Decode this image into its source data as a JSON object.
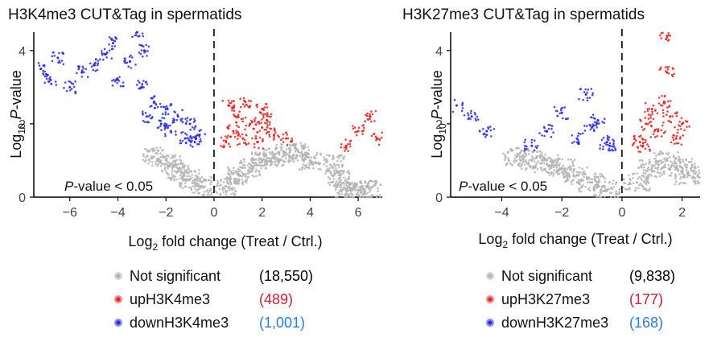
{
  "chart_data": [
    {
      "type": "scatter",
      "title": "H3K4me3 CUT&Tag in spermatids",
      "xlabel": "Log2 fold change (Treat / Ctrl.)",
      "ylabel": "Log10 P-value",
      "xlim": [
        -7.5,
        7
      ],
      "ylim": [
        0,
        4.5
      ],
      "xticks": [
        -6,
        -4,
        -2,
        0,
        2,
        4,
        6
      ],
      "yticks": [
        0,
        2,
        4
      ],
      "annotation": "P-value < 0.05",
      "significance_threshold_log10p": 1.3,
      "vertical_reference_line_x": 0,
      "legend_placement": "below",
      "series": [
        {
          "name": "Not significant",
          "count": "(18,550)",
          "color": "#b3b3b3",
          "count_color": "#000000",
          "points": [
            [
              -2.5,
              1.1
            ],
            [
              -1.8,
              0.9
            ],
            [
              -1.5,
              0.7
            ],
            [
              -1.0,
              0.5
            ],
            [
              -0.5,
              0.3
            ],
            [
              0.5,
              0.3
            ],
            [
              1.0,
              0.6
            ],
            [
              1.5,
              0.8
            ],
            [
              2.0,
              1.0
            ],
            [
              2.5,
              1.1
            ],
            [
              3.0,
              1.2
            ],
            [
              3.5,
              1.25
            ],
            [
              4.0,
              1.0
            ],
            [
              5.0,
              0.9
            ],
            [
              5.2,
              0.5
            ],
            [
              5.5,
              0.2
            ],
            [
              6.0,
              0.2
            ],
            [
              6.5,
              0.2
            ]
          ]
        },
        {
          "name": "upH3K4me3",
          "count": "(489)",
          "color": "#e82222",
          "count_color": "#cc1f3c",
          "points": [
            [
              0.5,
              1.5
            ],
            [
              0.8,
              1.8
            ],
            [
              1.0,
              2.2
            ],
            [
              1.2,
              1.6
            ],
            [
              1.5,
              2.0
            ],
            [
              1.8,
              1.5
            ],
            [
              2.0,
              1.9
            ],
            [
              2.2,
              2.1
            ],
            [
              2.5,
              1.7
            ],
            [
              3.0,
              1.6
            ],
            [
              0.6,
              2.5
            ],
            [
              1.3,
              2.6
            ],
            [
              2.0,
              2.4
            ],
            [
              5.5,
              1.4
            ],
            [
              6.0,
              1.8
            ],
            [
              6.5,
              2.2
            ],
            [
              6.8,
              1.6
            ]
          ]
        },
        {
          "name": "downH3K4me3",
          "count": "(1,001)",
          "color": "#2a2ae6",
          "count_color": "#2e7bdc",
          "points": [
            [
              -7.2,
              3.5
            ],
            [
              -6.8,
              3.2
            ],
            [
              -6.5,
              3.8
            ],
            [
              -6.0,
              3.0
            ],
            [
              -5.5,
              3.4
            ],
            [
              -5.0,
              3.6
            ],
            [
              -4.5,
              3.9
            ],
            [
              -4.0,
              3.2
            ],
            [
              -3.5,
              3.7
            ],
            [
              -3.0,
              3.0
            ],
            [
              -2.8,
              2.2
            ],
            [
              -2.5,
              2.6
            ],
            [
              -2.2,
              2.0
            ],
            [
              -2.0,
              2.4
            ],
            [
              -1.8,
              1.8
            ],
            [
              -1.5,
              2.2
            ],
            [
              -1.2,
              1.6
            ],
            [
              -1.0,
              2.0
            ],
            [
              -0.8,
              1.5
            ],
            [
              -0.6,
              1.7
            ],
            [
              -4.2,
              4.2
            ],
            [
              -3.2,
              4.5
            ],
            [
              -2.9,
              4.0
            ]
          ]
        }
      ]
    },
    {
      "type": "scatter",
      "title": "H3K27me3 CUT&Tag in spermatids",
      "xlabel": "Log2 fold change (Treat / Ctrl.)",
      "ylabel": "Log10 P-value",
      "xlim": [
        -5.7,
        2.6
      ],
      "ylim": [
        0,
        4.5
      ],
      "xticks": [
        -4,
        -2,
        0,
        2
      ],
      "yticks": [
        0,
        2,
        4
      ],
      "annotation": "P-value < 0.05",
      "significance_threshold_log10p": 1.3,
      "vertical_reference_line_x": 0,
      "legend_placement": "below",
      "series": [
        {
          "name": "Not significant",
          "count": "(9,838)",
          "color": "#b3b3b3",
          "count_color": "#000000",
          "points": [
            [
              -3.5,
              1.1
            ],
            [
              -3.0,
              1.0
            ],
            [
              -2.5,
              0.9
            ],
            [
              -2.0,
              0.8
            ],
            [
              -1.5,
              0.6
            ],
            [
              -1.0,
              0.4
            ],
            [
              -0.5,
              0.2
            ],
            [
              0.5,
              0.4
            ],
            [
              1.0,
              0.8
            ],
            [
              1.5,
              1.0
            ],
            [
              2.0,
              0.8
            ],
            [
              2.2,
              0.6
            ]
          ]
        },
        {
          "name": "upH3K27me3",
          "count": "(177)",
          "color": "#e82222",
          "count_color": "#cc1f3c",
          "points": [
            [
              0.6,
              1.5
            ],
            [
              0.8,
              2.0
            ],
            [
              1.0,
              2.4
            ],
            [
              1.2,
              1.8
            ],
            [
              1.4,
              2.6
            ],
            [
              1.5,
              3.4
            ],
            [
              1.6,
              2.2
            ],
            [
              1.8,
              1.6
            ],
            [
              2.0,
              2.0
            ],
            [
              1.5,
              4.4
            ],
            [
              0.7,
              1.4
            ]
          ]
        },
        {
          "name": "downH3K27me3",
          "count": "(168)",
          "color": "#2a2ae6",
          "count_color": "#2e7bdc",
          "points": [
            [
              -5.5,
              2.5
            ],
            [
              -5.0,
              2.2
            ],
            [
              -4.5,
              1.8
            ],
            [
              -3.0,
              1.4
            ],
            [
              -2.5,
              1.8
            ],
            [
              -2.0,
              2.3
            ],
            [
              -1.5,
              1.6
            ],
            [
              -1.2,
              2.8
            ],
            [
              -1.0,
              1.9
            ],
            [
              -0.8,
              2.1
            ],
            [
              -0.5,
              1.5
            ],
            [
              -0.4,
              1.4
            ]
          ]
        }
      ]
    }
  ]
}
